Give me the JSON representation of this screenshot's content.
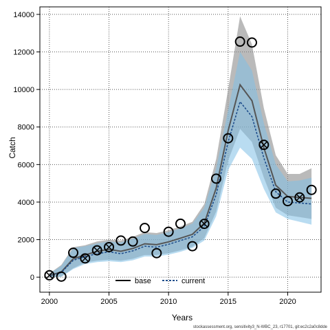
{
  "chart_data": {
    "type": "line",
    "xlabel": "Years",
    "ylabel": "Catch",
    "xlim": [
      1999.2,
      2022.8
    ],
    "ylim": [
      -800,
      14400
    ],
    "xticks": [
      2000,
      2005,
      2010,
      2015,
      2020
    ],
    "yticks": [
      0,
      2000,
      4000,
      6000,
      8000,
      10000,
      12000,
      14000
    ],
    "grid": true,
    "legend_position": "bottom-center",
    "footer": "stockassessment.org, sensitivity3_N-WBC_23, r17701, git:ec2c2a0c8dde",
    "x": [
      2000,
      2001,
      2002,
      2003,
      2004,
      2005,
      2006,
      2007,
      2008,
      2009,
      2010,
      2011,
      2012,
      2013,
      2014,
      2015,
      2016,
      2017,
      2018,
      2019,
      2020,
      2021,
      2022
    ],
    "observed": [
      100,
      30,
      1300,
      1000,
      1430,
      1600,
      1950,
      1900,
      2620,
      1280,
      2420,
      2850,
      1650,
      2840,
      5250,
      7400,
      12550,
      12500,
      7050,
      4450,
      4050,
      4250,
      4650
    ],
    "series": [
      {
        "name": "base",
        "color": "#555555",
        "values": [
          80,
          280,
          980,
          1180,
          1380,
          1480,
          1380,
          1530,
          1780,
          1730,
          1880,
          2080,
          2280,
          2880,
          4750,
          7800,
          10250,
          9400,
          6900,
          4900,
          4300,
          4250,
          4200
        ],
        "lower": [
          0,
          30,
          480,
          780,
          880,
          930,
          880,
          980,
          1180,
          1180,
          1280,
          1430,
          1630,
          2080,
          3500,
          6200,
          7900,
          7200,
          5300,
          3700,
          3300,
          3200,
          3100
        ],
        "upper": [
          200,
          650,
          1600,
          1700,
          1900,
          2000,
          1950,
          2150,
          2400,
          2350,
          2500,
          2700,
          2950,
          3900,
          6300,
          10000,
          13900,
          12400,
          9000,
          6500,
          5500,
          5500,
          5800
        ]
      },
      {
        "name": "current",
        "color": "#1f4e8c",
        "fill": "#7fbfe6",
        "values": [
          60,
          250,
          900,
          1100,
          1250,
          1350,
          1250,
          1400,
          1650,
          1600,
          1750,
          1950,
          2150,
          2700,
          4400,
          7200,
          9350,
          8550,
          6350,
          4550,
          4000,
          3950,
          3900
        ],
        "lower": [
          0,
          20,
          430,
          700,
          800,
          850,
          800,
          900,
          1100,
          1100,
          1200,
          1350,
          1550,
          1950,
          3250,
          5700,
          6900,
          6300,
          4700,
          3450,
          3100,
          2950,
          2800
        ],
        "upper": [
          180,
          600,
          1550,
          1650,
          1800,
          1900,
          1850,
          2050,
          2300,
          2250,
          2400,
          2600,
          2850,
          3700,
          5800,
          8900,
          12000,
          11000,
          8200,
          6000,
          5100,
          5150,
          5300
        ]
      }
    ]
  }
}
